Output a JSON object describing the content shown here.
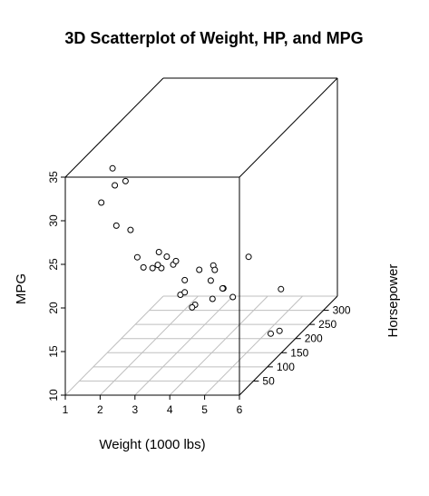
{
  "chart_data": {
    "type": "scatter3d",
    "title": "3D Scatterplot of Weight, HP, and MPG",
    "xlabel": "Weight (1000 lbs)",
    "ylabel": "Horsepower",
    "zlabel": "MPG",
    "xlim": [
      1,
      6
    ],
    "ylim": [
      0,
      350
    ],
    "zlim": [
      10,
      35
    ],
    "x_ticks": [
      "1",
      "2",
      "3",
      "4",
      "5",
      "6"
    ],
    "y_ticks": [
      "50",
      "100",
      "150",
      "200",
      "250",
      "300"
    ],
    "z_ticks": [
      "10",
      "15",
      "20",
      "25",
      "30",
      "35"
    ],
    "grid": "xy-plane",
    "points": [
      {
        "x": 2.62,
        "y": 110,
        "z": 21.0
      },
      {
        "x": 2.875,
        "y": 110,
        "z": 21.0
      },
      {
        "x": 2.32,
        "y": 93,
        "z": 22.8
      },
      {
        "x": 3.215,
        "y": 110,
        "z": 21.4
      },
      {
        "x": 3.44,
        "y": 175,
        "z": 18.7
      },
      {
        "x": 3.46,
        "y": 105,
        "z": 18.1
      },
      {
        "x": 3.57,
        "y": 245,
        "z": 14.3
      },
      {
        "x": 3.19,
        "y": 62,
        "z": 24.4
      },
      {
        "x": 3.15,
        "y": 95,
        "z": 22.8
      },
      {
        "x": 3.44,
        "y": 123,
        "z": 19.2
      },
      {
        "x": 3.44,
        "y": 123,
        "z": 17.8
      },
      {
        "x": 4.07,
        "y": 180,
        "z": 16.4
      },
      {
        "x": 3.73,
        "y": 180,
        "z": 17.3
      },
      {
        "x": 3.78,
        "y": 180,
        "z": 15.2
      },
      {
        "x": 5.25,
        "y": 205,
        "z": 10.4
      },
      {
        "x": 5.424,
        "y": 215,
        "z": 10.4
      },
      {
        "x": 5.345,
        "y": 230,
        "z": 14.7
      },
      {
        "x": 2.2,
        "y": 66,
        "z": 32.4
      },
      {
        "x": 1.615,
        "y": 52,
        "z": 30.4
      },
      {
        "x": 1.835,
        "y": 65,
        "z": 33.9
      },
      {
        "x": 2.465,
        "y": 97,
        "z": 21.5
      },
      {
        "x": 3.52,
        "y": 150,
        "z": 15.5
      },
      {
        "x": 3.435,
        "y": 150,
        "z": 15.2
      },
      {
        "x": 3.84,
        "y": 245,
        "z": 13.3
      },
      {
        "x": 3.845,
        "y": 175,
        "z": 19.2
      },
      {
        "x": 1.935,
        "y": 66,
        "z": 27.3
      },
      {
        "x": 2.14,
        "y": 91,
        "z": 26.0
      },
      {
        "x": 1.513,
        "y": 113,
        "z": 30.4
      },
      {
        "x": 3.17,
        "y": 264,
        "z": 15.8
      },
      {
        "x": 2.77,
        "y": 175,
        "z": 19.7
      },
      {
        "x": 3.57,
        "y": 335,
        "z": 15.0
      },
      {
        "x": 2.78,
        "y": 109,
        "z": 21.4
      }
    ]
  }
}
